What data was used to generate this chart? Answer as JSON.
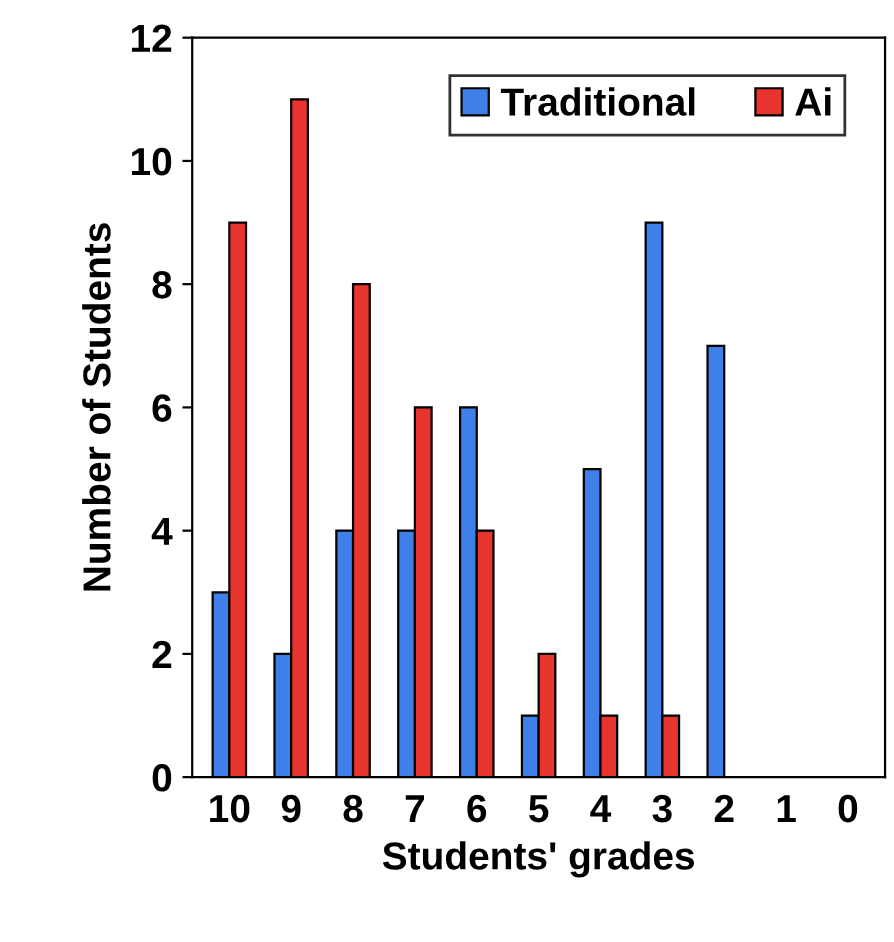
{
  "chart_data": {
    "type": "bar",
    "xlabel": "Students' grades",
    "ylabel": "Number of Students",
    "categories": [
      "10",
      "9",
      "8",
      "7",
      "6",
      "5",
      "4",
      "3",
      "2",
      "1",
      "0"
    ],
    "series": [
      {
        "name": "Traditional",
        "color": "#3f7fe8",
        "values": [
          3,
          2,
          4,
          4,
          6,
          1,
          5,
          9,
          7,
          0,
          0
        ]
      },
      {
        "name": "Ai",
        "color": "#e8342f",
        "values": [
          9,
          11,
          8,
          6,
          4,
          2,
          1,
          1,
          0,
          0,
          0
        ]
      }
    ],
    "ylim": [
      0,
      12
    ],
    "yticks": [
      0,
      2,
      4,
      6,
      8,
      10,
      12
    ],
    "grid": false,
    "legend": "top right"
  }
}
